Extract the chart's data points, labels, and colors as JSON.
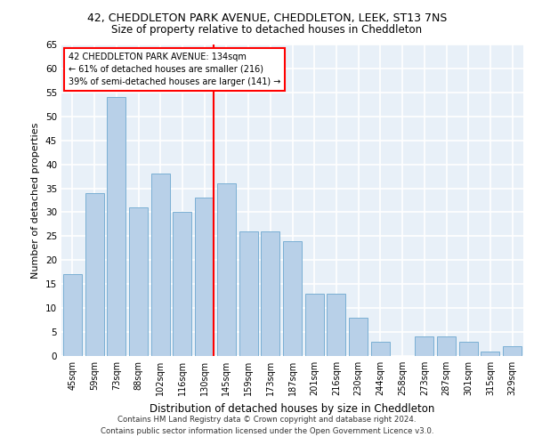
{
  "title1": "42, CHEDDLETON PARK AVENUE, CHEDDLETON, LEEK, ST13 7NS",
  "title2": "Size of property relative to detached houses in Cheddleton",
  "xlabel": "Distribution of detached houses by size in Cheddleton",
  "ylabel": "Number of detached properties",
  "categories": [
    "45sqm",
    "59sqm",
    "73sqm",
    "88sqm",
    "102sqm",
    "116sqm",
    "130sqm",
    "145sqm",
    "159sqm",
    "173sqm",
    "187sqm",
    "201sqm",
    "216sqm",
    "230sqm",
    "244sqm",
    "258sqm",
    "273sqm",
    "287sqm",
    "301sqm",
    "315sqm",
    "329sqm"
  ],
  "values": [
    17,
    34,
    54,
    31,
    38,
    30,
    33,
    36,
    26,
    26,
    24,
    13,
    13,
    8,
    3,
    0,
    4,
    4,
    3,
    1,
    2
  ],
  "bar_color": "#b8d0e8",
  "bar_edge_color": "#7aafd4",
  "annotation_text_line1": "42 CHEDDLETON PARK AVENUE: 134sqm",
  "annotation_text_line2": "← 61% of detached houses are smaller (216)",
  "annotation_text_line3": "39% of semi-detached houses are larger (141) →",
  "annotation_box_color": "white",
  "annotation_box_edge_color": "red",
  "vline_color": "red",
  "ylim": [
    0,
    65
  ],
  "yticks": [
    0,
    5,
    10,
    15,
    20,
    25,
    30,
    35,
    40,
    45,
    50,
    55,
    60,
    65
  ],
  "background_color": "#e8f0f8",
  "grid_color": "white",
  "footer1": "Contains HM Land Registry data © Crown copyright and database right 2024.",
  "footer2": "Contains public sector information licensed under the Open Government Licence v3.0."
}
